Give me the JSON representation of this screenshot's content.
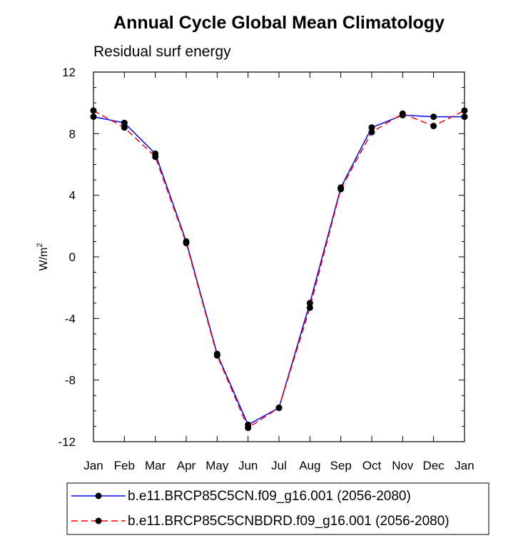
{
  "chart_data": {
    "type": "line",
    "title": "Annual Cycle Global Mean Climatology",
    "subtitle": "Residual surf energy",
    "ylabel": "W/m",
    "ylabel_superscript": "2",
    "xlabel": "",
    "categories": [
      "Jan",
      "Feb",
      "Mar",
      "Apr",
      "May",
      "Jun",
      "Jul",
      "Aug",
      "Sep",
      "Oct",
      "Nov",
      "Dec",
      "Jan"
    ],
    "yticks": [
      12,
      8,
      4,
      0,
      -4,
      -8,
      -12
    ],
    "ylim": [
      -12,
      12
    ],
    "grid": false,
    "legend_position": "bottom",
    "series": [
      {
        "name": "b.e11.BRCP85C5CN.f09_g16.001 (2056-2080)",
        "color": "#0000ff",
        "style": "solid",
        "values": [
          9.1,
          8.7,
          6.7,
          1.0,
          -6.3,
          -10.9,
          -9.8,
          -3.0,
          4.5,
          8.4,
          9.2,
          9.1,
          9.1
        ]
      },
      {
        "name": "b.e11.BRCP85C5CNBDRD.f09_g16.001 (2056-2080)",
        "color": "#ff0000",
        "style": "dashed",
        "values": [
          9.5,
          8.4,
          6.5,
          0.9,
          -6.4,
          -11.1,
          -9.8,
          -3.3,
          4.4,
          8.1,
          9.3,
          8.5,
          9.5
        ]
      }
    ]
  }
}
